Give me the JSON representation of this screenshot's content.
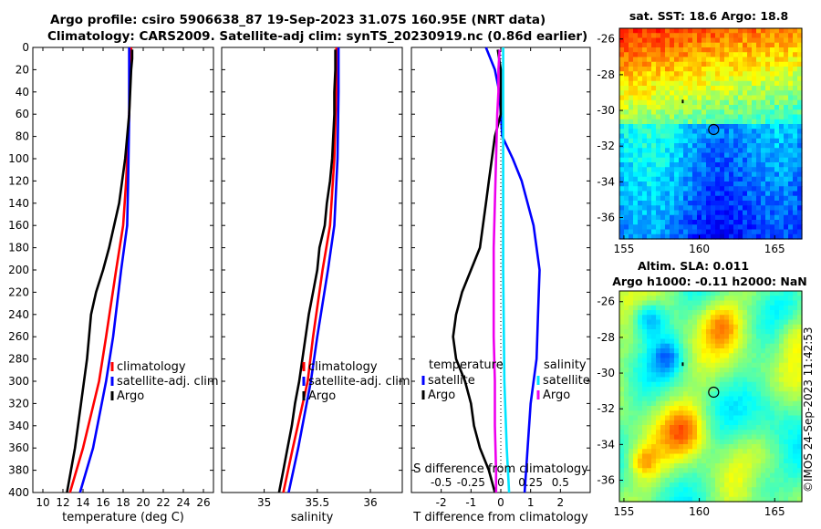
{
  "title": {
    "line1": "Argo profile: csiro 5906638_87 19-Sep-2023 31.07S 160.95E (NRT data)",
    "line2": "Climatology: CARS2009. Satellite-adj clim: synTS_20230919.nc (0.86d earlier)"
  },
  "credit": "©IMOS 24-Sep-2023 11:42:53",
  "colors": {
    "climatology": "#ff0000",
    "satellite": "#0000ff",
    "argo": "#000000",
    "sal_satellite": "#00e5ff",
    "sal_argo": "#ee00ee",
    "zero_line": "#000000"
  },
  "chart_data": [
    {
      "id": "temperature",
      "type": "line",
      "xlabel": "temperature (deg C)",
      "ylabel": "",
      "xlim": [
        9,
        27
      ],
      "ylim": [
        400,
        0
      ],
      "xticks": [
        10,
        12,
        14,
        16,
        18,
        20,
        22,
        24,
        26
      ],
      "yticks": [
        0,
        20,
        40,
        60,
        80,
        100,
        120,
        140,
        160,
        180,
        200,
        220,
        240,
        260,
        280,
        300,
        320,
        340,
        360,
        380,
        400
      ],
      "legend": [
        "climatology",
        "satellite-adj. clim",
        "Argo"
      ],
      "series": [
        {
          "name": "climatology",
          "color": "#ff0000",
          "depth": [
            0,
            20,
            60,
            120,
            160,
            200,
            260,
            300,
            360,
            400
          ],
          "values": [
            18.8,
            18.7,
            18.6,
            18.3,
            18.0,
            17.3,
            16.3,
            15.6,
            14.0,
            12.7
          ]
        },
        {
          "name": "satellite-adj. clim",
          "color": "#0000ff",
          "depth": [
            0,
            20,
            60,
            120,
            160,
            200,
            260,
            300,
            360,
            400
          ],
          "values": [
            18.6,
            18.6,
            18.6,
            18.5,
            18.4,
            17.8,
            17.0,
            16.3,
            15.0,
            13.7
          ]
        },
        {
          "name": "Argo",
          "color": "#000000",
          "depth": [
            2,
            10,
            20,
            40,
            60,
            80,
            100,
            120,
            140,
            160,
            180,
            200,
            220,
            240,
            260,
            280,
            300,
            320,
            340,
            360,
            380,
            400
          ],
          "values": [
            18.9,
            18.9,
            18.8,
            18.7,
            18.6,
            18.4,
            18.2,
            17.9,
            17.6,
            17.1,
            16.6,
            16.0,
            15.3,
            14.8,
            14.6,
            14.4,
            14.1,
            13.8,
            13.5,
            13.2,
            12.8,
            12.4
          ]
        }
      ]
    },
    {
      "id": "salinity",
      "type": "line",
      "xlabel": "salinity",
      "ylabel": "",
      "xlim": [
        34.6,
        36.3
      ],
      "ylim": [
        400,
        0
      ],
      "xticks": [
        35,
        35.5,
        36
      ],
      "xtick_labels": [
        "35",
        "35.5",
        "36"
      ],
      "legend": [
        "climatology",
        "satellite-adj. clim",
        "Argo"
      ],
      "series": [
        {
          "name": "climatology",
          "color": "#ff0000",
          "depth": [
            0,
            40,
            100,
            160,
            200,
            260,
            300,
            360,
            400
          ],
          "values": [
            35.68,
            35.68,
            35.66,
            35.62,
            35.55,
            35.46,
            35.41,
            35.27,
            35.18
          ]
        },
        {
          "name": "satellite-adj. clim",
          "color": "#0000ff",
          "depth": [
            0,
            40,
            100,
            160,
            200,
            260,
            300,
            360,
            400
          ],
          "values": [
            35.7,
            35.7,
            35.69,
            35.66,
            35.6,
            35.5,
            35.44,
            35.32,
            35.23
          ]
        },
        {
          "name": "Argo",
          "color": "#000000",
          "depth": [
            2,
            20,
            40,
            60,
            80,
            100,
            120,
            140,
            160,
            180,
            200,
            220,
            240,
            260,
            280,
            300,
            320,
            340,
            360,
            380,
            400
          ],
          "values": [
            35.67,
            35.67,
            35.66,
            35.66,
            35.65,
            35.64,
            35.62,
            35.59,
            35.57,
            35.52,
            35.5,
            35.46,
            35.42,
            35.39,
            35.36,
            35.33,
            35.29,
            35.26,
            35.22,
            35.18,
            35.14
          ]
        }
      ]
    },
    {
      "id": "difference",
      "type": "line",
      "xlabel": "T difference from climatology",
      "xlabel_top": "S difference from climatology",
      "xlim": [
        -3,
        3
      ],
      "ylim": [
        400,
        0
      ],
      "xticks": [
        -2,
        -1,
        0,
        1,
        2
      ],
      "xtick_labels": [
        "-2",
        "-1",
        "0",
        "1",
        "2"
      ],
      "s_xticks": [
        -0.5,
        -0.25,
        0,
        0.25,
        0.5
      ],
      "s_xtick_labels": [
        "-0.5",
        "-0.25",
        "0",
        "0.25",
        "0.5"
      ],
      "legend_temperature_title": "temperature",
      "legend_salinity_title": "salinity",
      "legend_temperature": [
        "satellite",
        "Argo"
      ],
      "legend_salinity": [
        "satellite",
        "Argo"
      ],
      "series": [
        {
          "name": "T satellite",
          "color": "#0000ff",
          "depth": [
            0,
            20,
            40,
            60,
            80,
            100,
            120,
            140,
            160,
            180,
            200,
            240,
            280,
            320,
            360,
            400
          ],
          "values": [
            -0.5,
            -0.2,
            -0.05,
            0.0,
            0.05,
            0.4,
            0.7,
            0.9,
            1.1,
            1.2,
            1.3,
            1.25,
            1.2,
            1.0,
            0.9,
            0.8
          ]
        },
        {
          "name": "T Argo",
          "color": "#000000",
          "depth": [
            2,
            20,
            40,
            60,
            80,
            100,
            120,
            140,
            160,
            180,
            200,
            220,
            240,
            260,
            280,
            300,
            320,
            340,
            360,
            380,
            400
          ],
          "values": [
            -0.1,
            0.0,
            0.0,
            0.0,
            -0.2,
            -0.3,
            -0.4,
            -0.5,
            -0.6,
            -0.7,
            -1.0,
            -1.3,
            -1.5,
            -1.6,
            -1.5,
            -1.2,
            -1.0,
            -0.9,
            -0.7,
            -0.4,
            -0.2
          ]
        },
        {
          "name": "S satellite",
          "color": "#00e5ff",
          "depth": [
            0,
            100,
            200,
            300,
            360,
            400
          ],
          "values": [
            0.02,
            0.02,
            0.02,
            0.03,
            0.05,
            0.07
          ]
        },
        {
          "name": "S Argo",
          "color": "#ee00ee",
          "depth": [
            2,
            20,
            40,
            60,
            100,
            140,
            180,
            220,
            260,
            300,
            340,
            380,
            400
          ],
          "values": [
            -0.01,
            -0.02,
            -0.02,
            -0.03,
            -0.04,
            -0.05,
            -0.06,
            -0.06,
            -0.06,
            -0.05,
            -0.05,
            -0.04,
            -0.04
          ]
        }
      ]
    },
    {
      "id": "sst_map",
      "type": "heatmap",
      "title": "sat. SST: 18.6 Argo: 18.8",
      "xticks": [
        155,
        160,
        165
      ],
      "yticks": [
        -26,
        -28,
        -30,
        -32,
        -34,
        -36
      ],
      "xlim": [
        154.7,
        166.8
      ],
      "ylim": [
        -37.2,
        -25.4
      ],
      "float_position": [
        160.95,
        -31.07
      ]
    },
    {
      "id": "sla_map",
      "type": "heatmap",
      "title": "Altim. SLA: 0.011",
      "subtitle": "Argo h1000: -0.11 h2000: NaN",
      "xticks": [
        155,
        160,
        165
      ],
      "yticks": [
        -26,
        -28,
        -30,
        -32,
        -34,
        -36
      ],
      "xlim": [
        154.7,
        166.8
      ],
      "ylim": [
        -37.2,
        -25.4
      ],
      "float_position": [
        160.95,
        -31.07
      ]
    }
  ]
}
